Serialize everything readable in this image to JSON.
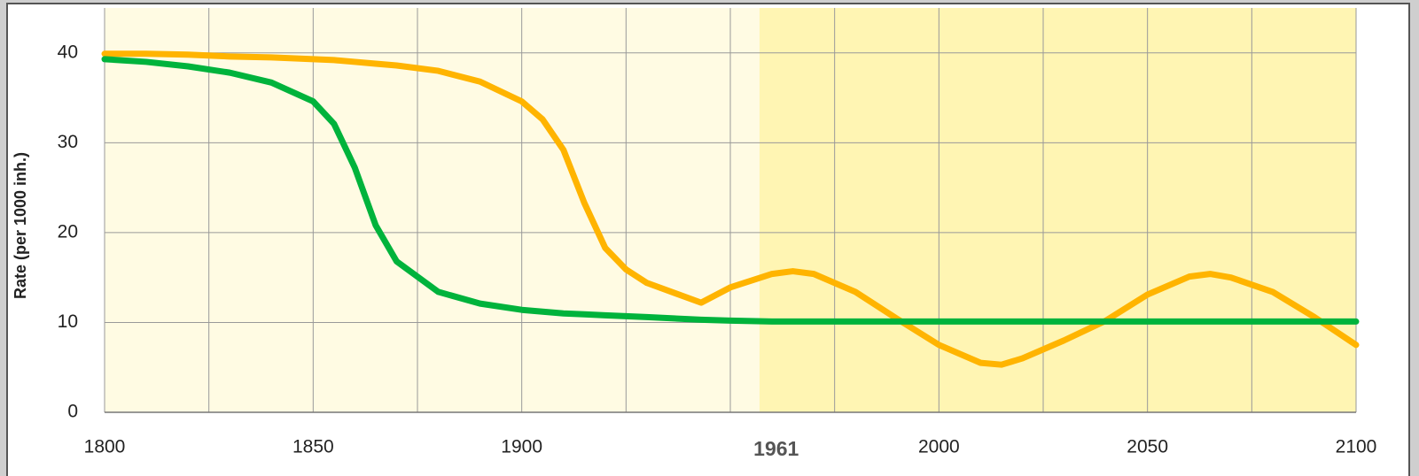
{
  "chart_data": {
    "type": "line",
    "y_label": "Rate (per 1000 inh.)",
    "x": [
      1800,
      1810,
      1820,
      1830,
      1840,
      1850,
      1855,
      1860,
      1865,
      1870,
      1880,
      1890,
      1900,
      1905,
      1910,
      1915,
      1920,
      1925,
      1930,
      1943,
      1950,
      1960,
      1965,
      1970,
      1980,
      1990,
      2000,
      2010,
      2015,
      2020,
      2030,
      2040,
      2050,
      2060,
      2065,
      2070,
      2080,
      2090,
      2100
    ],
    "series": [
      {
        "color": "#00b33c",
        "values": [
          39.3,
          39.0,
          38.5,
          37.8,
          36.7,
          34.6,
          32.1,
          27.2,
          20.8,
          16.8,
          13.4,
          12.1,
          11.4,
          11.2,
          11.0,
          10.9,
          10.8,
          10.7,
          10.6,
          10.3,
          10.2,
          10.1,
          10.1,
          10.1,
          10.1,
          10.1,
          10.1,
          10.1,
          10.1,
          10.1,
          10.1,
          10.1,
          10.1,
          10.1,
          10.1,
          10.1,
          10.1,
          10.1,
          10.1
        ]
      },
      {
        "color": "#ffb400",
        "values": [
          39.9,
          39.9,
          39.8,
          39.6,
          39.5,
          39.3,
          39.2,
          39.0,
          38.8,
          38.6,
          38.0,
          36.8,
          34.6,
          32.6,
          29.2,
          23.3,
          18.3,
          15.9,
          14.4,
          12.2,
          13.9,
          15.4,
          15.7,
          15.4,
          13.4,
          10.4,
          7.5,
          5.5,
          5.3,
          6.0,
          8.0,
          10.2,
          13.1,
          15.1,
          15.4,
          15.0,
          13.4,
          10.6,
          7.5
        ]
      }
    ],
    "xlim": [
      1800,
      2100
    ],
    "ylim": [
      0,
      45
    ],
    "yticks": [
      0,
      10,
      20,
      30,
      40
    ],
    "xticks": [
      1800,
      1850,
      1900,
      1961,
      2000,
      2050,
      2100
    ],
    "bold_xtick_index": 3,
    "xgrid": [
      1800,
      1825,
      1850,
      1875,
      1900,
      1925,
      1950,
      1975,
      2000,
      2025,
      2050,
      2075,
      2100
    ],
    "grid": true,
    "background_color": "#fffbe3",
    "shaded_region": {
      "xlim": [
        1957,
        2100
      ],
      "color": "#fff5b3"
    }
  }
}
